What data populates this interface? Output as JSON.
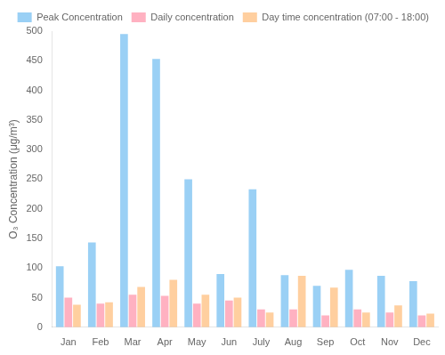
{
  "chart_data": {
    "type": "bar",
    "categories": [
      "Jan",
      "Feb",
      "Mar",
      "Apr",
      "May",
      "Jun",
      "July",
      "Aug",
      "Sep",
      "Oct",
      "Nov",
      "Dec"
    ],
    "series": [
      {
        "name": "Peak Concentration",
        "values": [
          103,
          143,
          495,
          453,
          250,
          90,
          233,
          88,
          70,
          97,
          87,
          78
        ]
      },
      {
        "name": "Daily concentration",
        "values": [
          50,
          40,
          55,
          53,
          40,
          45,
          30,
          30,
          20,
          30,
          25,
          20
        ]
      },
      {
        "name": "Day time concentration (07:00 - 18:00)",
        "values": [
          38,
          42,
          68,
          80,
          55,
          50,
          25,
          87,
          67,
          25,
          37,
          23
        ]
      }
    ],
    "ylabel": "O₃ Concentration (μg/m³)",
    "ylim": [
      0,
      500
    ],
    "yticks": [
      0,
      50,
      100,
      150,
      200,
      250,
      300,
      350,
      400,
      450,
      500
    ],
    "grid": false,
    "legend": "upper right"
  }
}
